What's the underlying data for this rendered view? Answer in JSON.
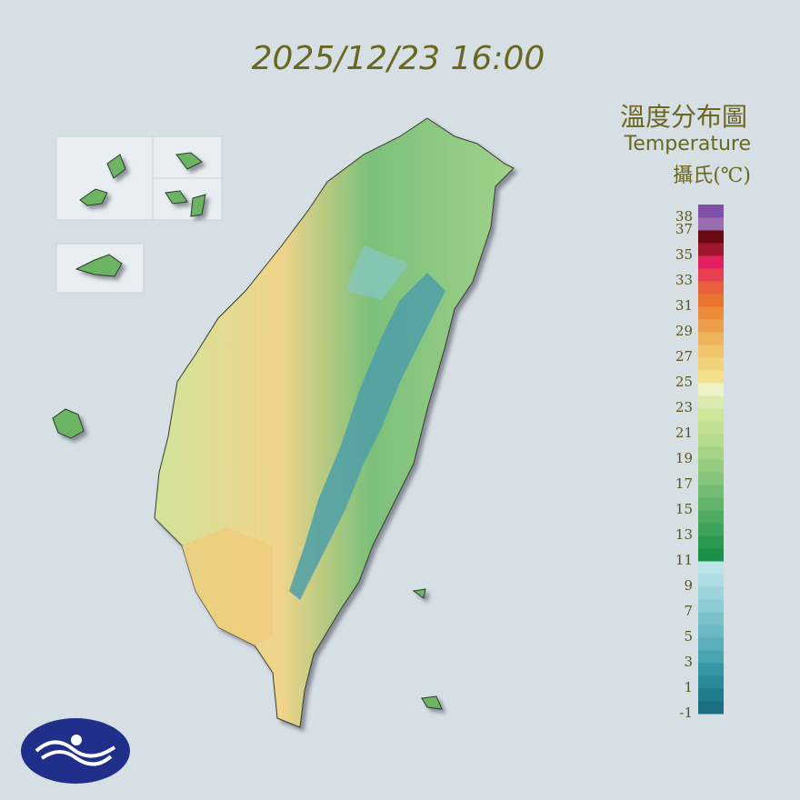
{
  "timestamp": "2025/12/23 16:00",
  "title": "溫度分布圖",
  "subtitle": "Temperature",
  "unit": "攝氏(℃)",
  "legend": {
    "range": [
      -1,
      39
    ],
    "ticks": [
      38,
      37,
      35,
      33,
      31,
      29,
      27,
      25,
      23,
      21,
      19,
      17,
      15,
      13,
      11,
      9,
      7,
      5,
      3,
      1,
      -1
    ],
    "colors": [
      "#1a6f80",
      "#1f7c8c",
      "#2a8a9a",
      "#3597a6",
      "#4aa3b0",
      "#5aadba",
      "#6bb8c4",
      "#7cc2cc",
      "#8ccbd4",
      "#9dd4dc",
      "#acdde3",
      "#bce5ea",
      "#1a9148",
      "#2a9a50",
      "#3ea35a",
      "#4fab62",
      "#62b46a",
      "#74bc72",
      "#86c47a",
      "#96cc80",
      "#a6d486",
      "#b4da8c",
      "#c2e092",
      "#cee698",
      "#dcecb0",
      "#eef2c8",
      "#f4e08c",
      "#f2d27a",
      "#f0c46a",
      "#eeb45a",
      "#ec9f48",
      "#ea8c38",
      "#e87430",
      "#e8603a",
      "#e84050",
      "#e02060",
      "#a01830",
      "#6a0a10",
      "#9b6cb0",
      "#8050a8"
    ]
  }
}
